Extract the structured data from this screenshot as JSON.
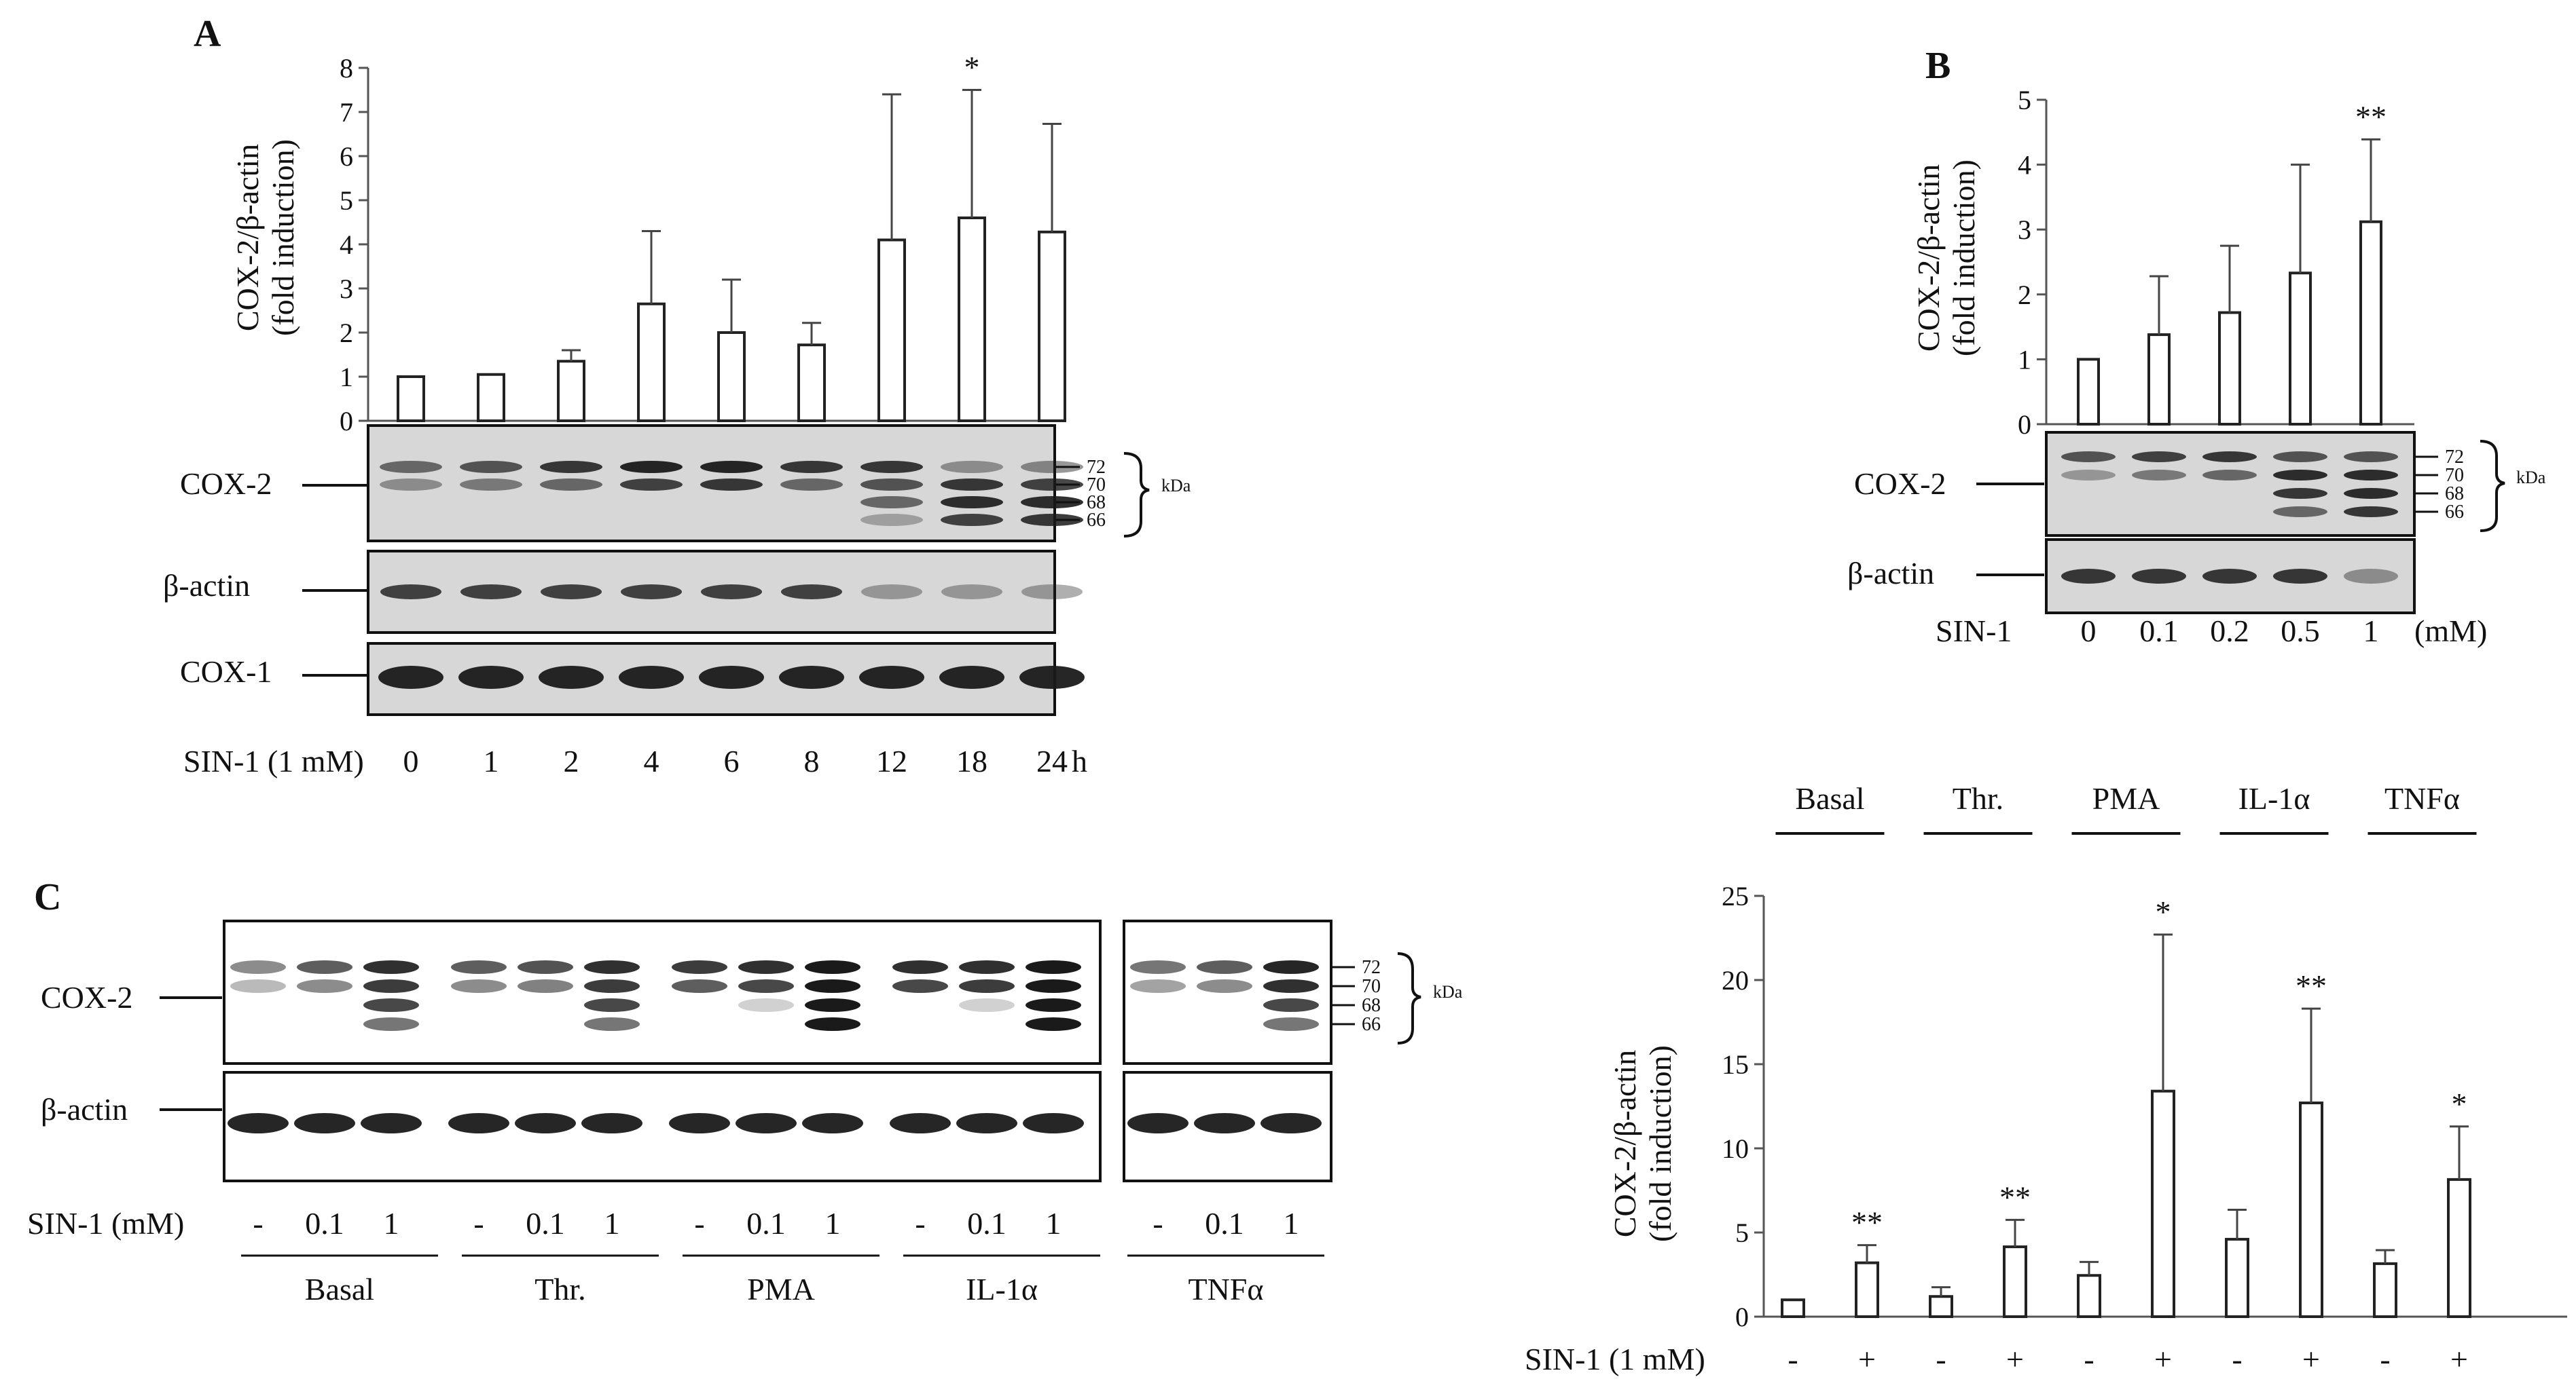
{
  "panels": {
    "A": {
      "letter": "A",
      "ylabel_line1": "COX-2/β-actin",
      "ylabel_line2": "(fold induction)",
      "xaxis_prefix": "SIN-1 (1 mM)",
      "xunit": "h",
      "blot_labels": [
        "COX-2",
        "β-actin",
        "COX-1"
      ],
      "mw_markers": [
        "72",
        "70",
        "68",
        "66"
      ],
      "mw_unit": "kDa"
    },
    "B": {
      "letter": "B",
      "ylabel_line1": "COX-2/β-actin",
      "ylabel_line2": "(fold induction)",
      "xaxis_prefix": "SIN-1",
      "xunit": "(mM)",
      "blot_labels": [
        "COX-2",
        "β-actin"
      ],
      "mw_markers": [
        "72",
        "70",
        "68",
        "66"
      ],
      "mw_unit": "kDa"
    },
    "C": {
      "letter": "C",
      "blot_labels": [
        "COX-2",
        "β-actin"
      ],
      "mw_markers": [
        "72",
        "70",
        "68",
        "66"
      ],
      "mw_unit": "kDa",
      "lane_row_label": "SIN-1 (mM)",
      "lane_values": [
        "-",
        "0.1",
        "1",
        "-",
        "0.1",
        "1",
        "-",
        "0.1",
        "1",
        "-",
        "0.1",
        "1",
        "-",
        "0.1",
        "1"
      ],
      "groups": [
        "Basal",
        "Thr.",
        "PMA",
        "IL-1α",
        "TNFα"
      ],
      "chart_ylabel_line1": "COX-2/β-actin",
      "chart_ylabel_line2": "(fold induction)",
      "chart_xaxis_prefix": "SIN-1 (1 mM)"
    }
  },
  "chart_data": [
    {
      "type": "bar",
      "panel": "A",
      "ylabel": "COX-2/β-actin (fold induction)",
      "xlabel": "SIN-1 (1 mM)",
      "categories": [
        "0",
        "1",
        "2",
        "4",
        "6",
        "8",
        "12",
        "18",
        "24"
      ],
      "values": [
        1.0,
        1.05,
        1.35,
        2.65,
        2.0,
        1.72,
        4.1,
        4.6,
        4.28
      ],
      "error": [
        0.0,
        0.0,
        0.25,
        1.65,
        1.2,
        0.5,
        3.3,
        2.9,
        2.45
      ],
      "significance": [
        "",
        "",
        "",
        "",
        "",
        "",
        "",
        "*",
        ""
      ],
      "ylim": [
        0,
        8
      ],
      "yticks": [
        0,
        1,
        2,
        3,
        4,
        5,
        6,
        7,
        8
      ]
    },
    {
      "type": "bar",
      "panel": "B",
      "ylabel": "COX-2/β-actin (fold induction)",
      "xlabel": "SIN-1",
      "categories": [
        "0",
        "0.1",
        "0.2",
        "0.5",
        "1"
      ],
      "values": [
        1.0,
        1.38,
        1.72,
        2.33,
        3.12
      ],
      "error": [
        0.0,
        0.9,
        1.03,
        1.67,
        1.27
      ],
      "significance": [
        "",
        "",
        "",
        "",
        "**"
      ],
      "ylim": [
        0,
        5
      ],
      "yticks": [
        0,
        1,
        2,
        3,
        4,
        5
      ]
    },
    {
      "type": "bar",
      "panel": "C",
      "ylabel": "COX-2/β-actin (fold induction)",
      "xlabel": "SIN-1 (1 mM)",
      "groups": [
        "Basal",
        "Thr.",
        "PMA",
        "IL-1α",
        "TNFα"
      ],
      "categories": [
        "-",
        "+",
        "-",
        "+",
        "-",
        "+",
        "-",
        "+",
        "-",
        "+"
      ],
      "values": [
        1.0,
        3.2,
        1.2,
        4.15,
        2.45,
        13.4,
        4.6,
        12.7,
        3.15,
        8.15
      ],
      "error": [
        0.0,
        1.05,
        0.55,
        1.6,
        0.8,
        9.3,
        1.75,
        5.6,
        0.8,
        3.15
      ],
      "significance": [
        "",
        "**",
        "",
        "**",
        "",
        "*",
        "",
        "**",
        "",
        "*"
      ],
      "ylim": [
        0,
        25
      ],
      "yticks": [
        0,
        5,
        10,
        15,
        20,
        25
      ]
    }
  ]
}
